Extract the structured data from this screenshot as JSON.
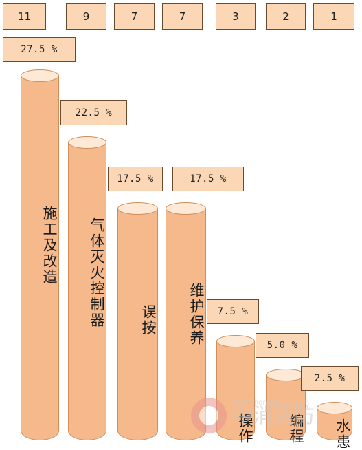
{
  "chart_data": {
    "type": "bar",
    "categories": [
      "施工及改造",
      "气体灭火控制器",
      "误按",
      "维护保养",
      "操作",
      "编程",
      "水患"
    ],
    "counts": [
      "11",
      "9",
      "7",
      "7",
      "3",
      "2",
      "1"
    ],
    "percent_labels": [
      "27.5 %",
      "22.5 %",
      "17.5 %",
      "17.5 %",
      "7.5 %",
      "5.0 %",
      "2.5 %"
    ],
    "values": [
      27.5,
      22.5,
      17.5,
      17.5,
      7.5,
      5.0,
      2.5
    ],
    "grid": false,
    "legend": "none",
    "colors": {
      "cylinder": "#f5b98c",
      "cylinder_top": "#fde9d6",
      "box": "#fbd7b5",
      "border": "#6b4a2d"
    }
  },
  "watermark": {
    "text": "中消消防",
    "url": "www.zhongze119.com"
  }
}
